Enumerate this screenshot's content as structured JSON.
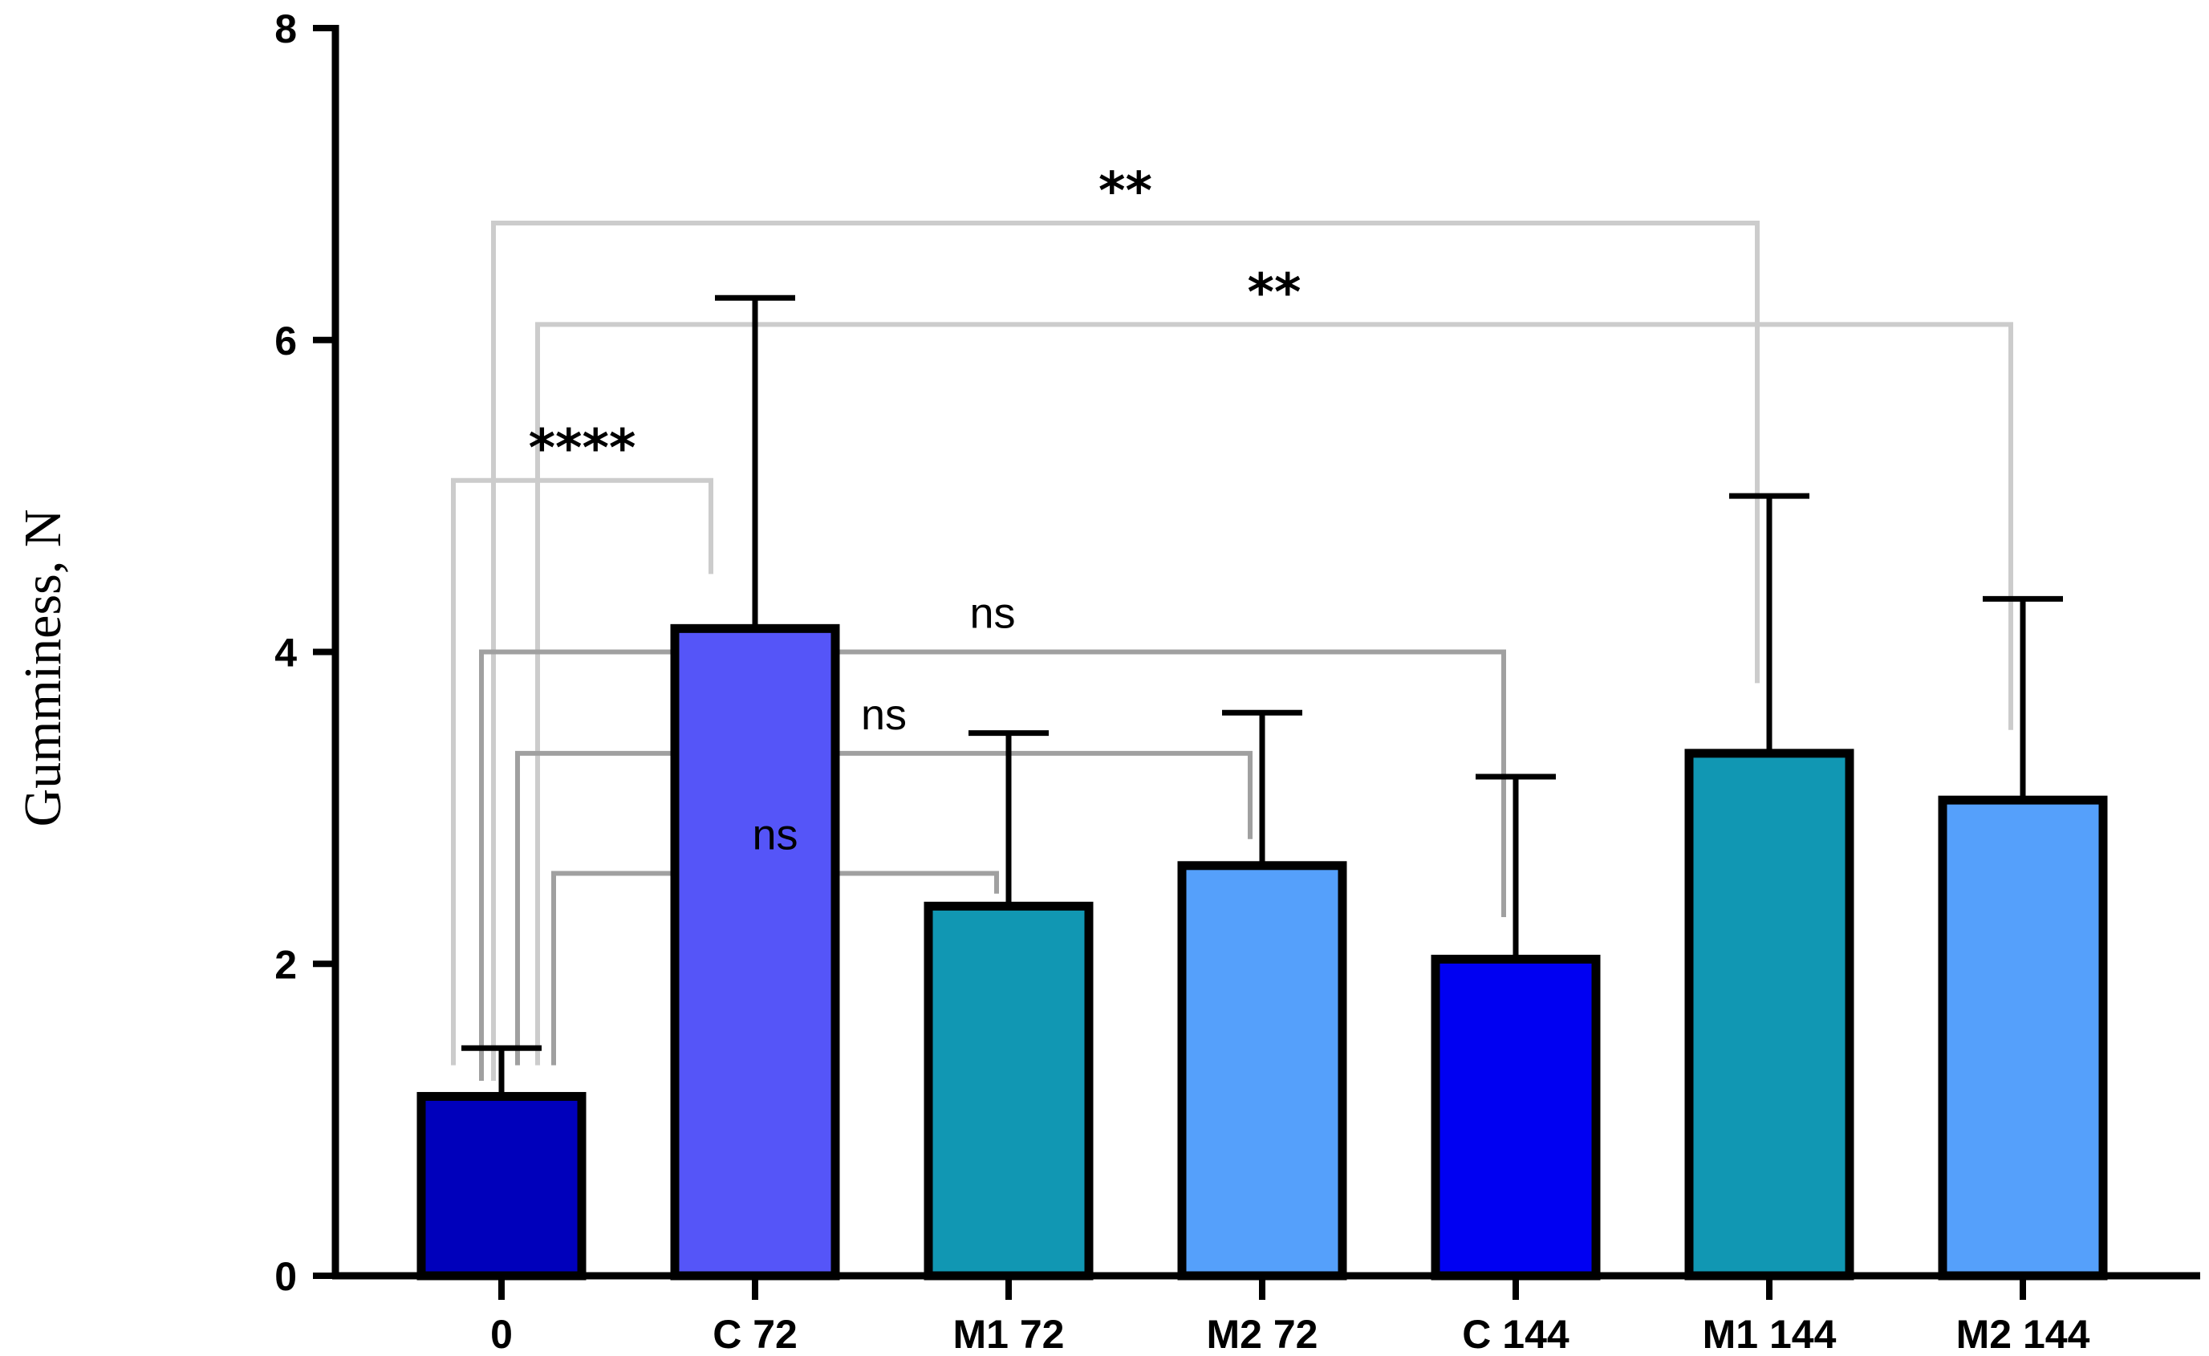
{
  "chart_data": {
    "type": "bar",
    "title": "",
    "xlabel": "",
    "ylabel": "Gumminess, N",
    "ylim": [
      0,
      8
    ],
    "yticks": [
      0,
      2,
      4,
      6,
      8
    ],
    "grid": false,
    "legend": "none",
    "categories": [
      "0",
      "C 72",
      "M1 72",
      "M2 72",
      "C 144",
      "M1 144",
      "M2 144"
    ],
    "values": [
      1.15,
      4.15,
      2.37,
      2.63,
      2.03,
      3.35,
      3.05
    ],
    "errors": [
      0.31,
      2.12,
      1.11,
      0.98,
      1.17,
      1.65,
      1.29
    ],
    "colors": [
      "#0000bb",
      "#5555f8",
      "#1197b3",
      "#55a0fb",
      "#0000f2",
      "#1197b3",
      "#55a0fb"
    ],
    "comparisons": [
      {
        "from": "0",
        "to": "C 72",
        "label": "****",
        "bracket_level": 5.1,
        "end_from": 1.35,
        "end_to": 4.5,
        "color": "#cccccc"
      },
      {
        "from": "0",
        "to": "M1 144",
        "label": "**",
        "bracket_level": 6.75,
        "end_from": 1.25,
        "end_to": 3.8,
        "color": "#cccccc"
      },
      {
        "from": "0",
        "to": "M2 144",
        "label": "**",
        "bracket_level": 6.1,
        "end_from": 1.35,
        "end_to": 3.5,
        "color": "#cccccc"
      },
      {
        "from": "0",
        "to": "C 144",
        "label": "ns",
        "bracket_level": 4.0,
        "end_from": 1.25,
        "end_to": 2.3,
        "color": "#a0a0a0"
      },
      {
        "from": "0",
        "to": "M2 72",
        "label": "ns",
        "bracket_level": 3.35,
        "end_from": 1.35,
        "end_to": 2.8,
        "color": "#a0a0a0"
      },
      {
        "from": "0",
        "to": "M1 72",
        "label": "ns",
        "bracket_level": 2.58,
        "end_from": 1.35,
        "end_to": 2.45,
        "color": "#a0a0a0"
      }
    ]
  }
}
